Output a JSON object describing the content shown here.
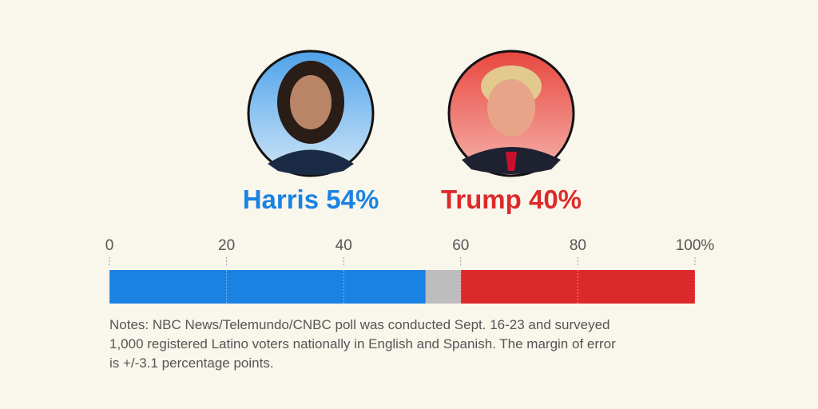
{
  "chart_data": {
    "type": "stacked-bar",
    "series": [
      {
        "name": "Harris",
        "color": "#1a82e3",
        "values": [
          54
        ],
        "value_labels": [
          "54%"
        ]
      },
      {
        "color": "#bdbdbd",
        "values": [
          6
        ]
      },
      {
        "name": "Trump",
        "color": "#dc2a2a",
        "values": [
          40
        ],
        "value_labels": [
          "40%"
        ]
      }
    ],
    "xlim": [
      0,
      100
    ],
    "xticks": [
      0,
      20,
      40,
      60,
      80,
      {
        "value": 100,
        "label": "100%"
      }
    ],
    "notes": "Notes: NBC News/Telemundo/CNBC poll was conducted Sept. 16-23 and surveyed 1,000 registered Latino voters nationally in English and Spanish. The margin of error is +/-3.1 percentage points."
  }
}
